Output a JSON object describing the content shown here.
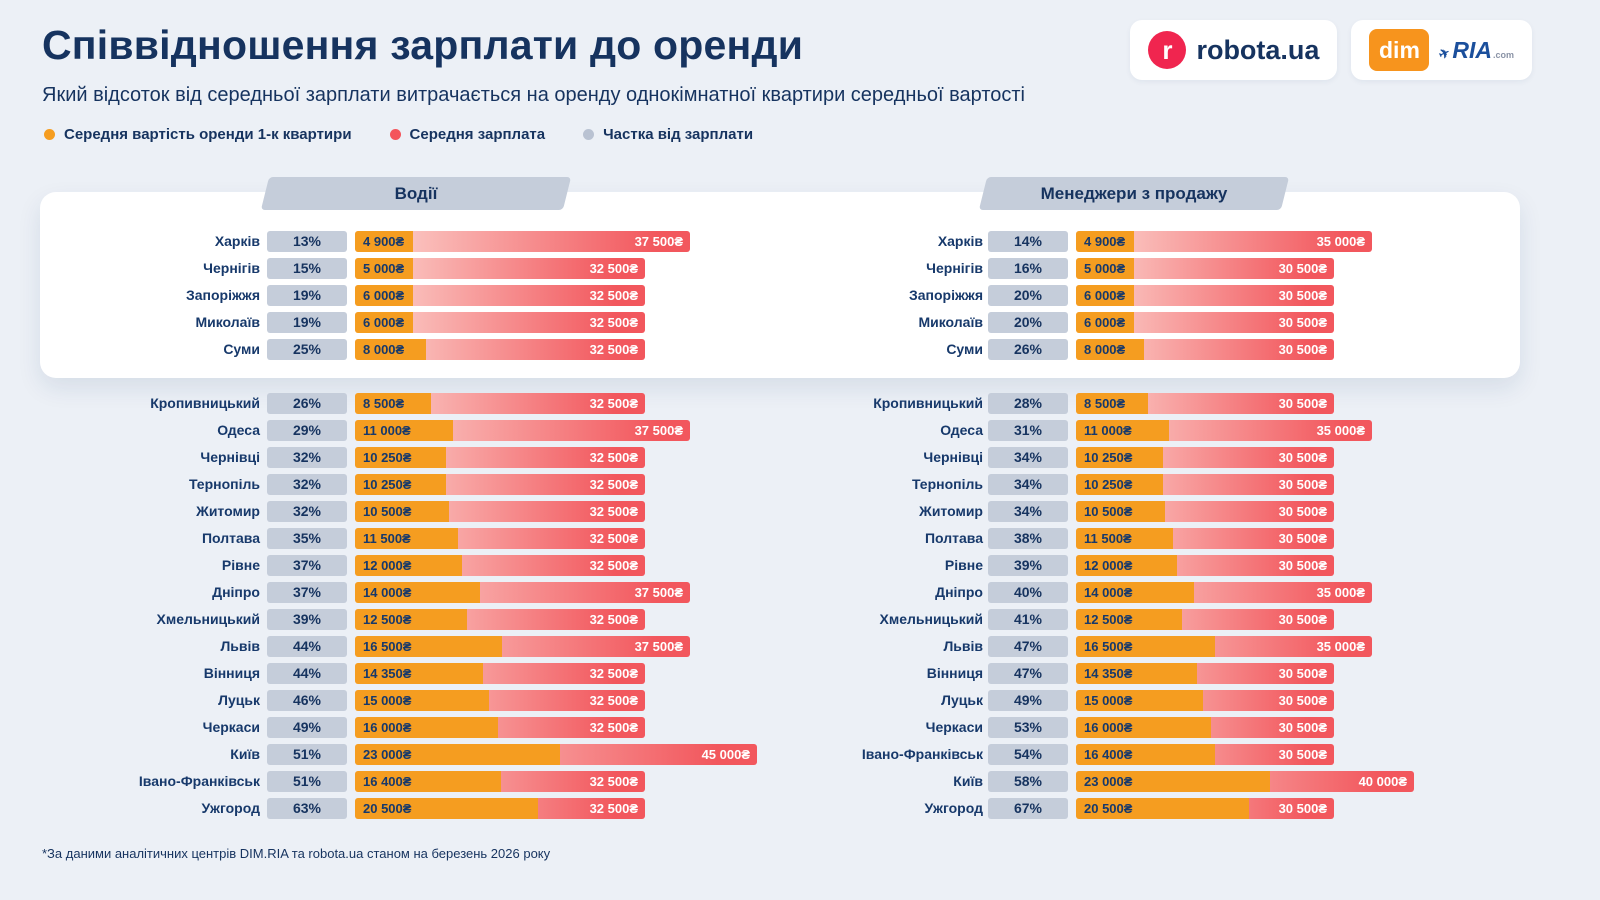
{
  "page": {
    "title": "Співвідношення зарплати до оренди",
    "subtitle": "Який відсоток від середньої зарплати витрачається на оренду однокімнатної квартири середньої вартості",
    "footnote": "*За даними аналітичних центрів DIM.RIA та robota.ua станом на березень 2026 року"
  },
  "colors": {
    "background": "#ecf0f6",
    "navy": "#16335f",
    "badge": "#c5cdda",
    "rent_orange": "#f59d20",
    "salary_red": "#f2575d",
    "salary_pink": "#fcd9d3"
  },
  "logos": {
    "robota_icon": "r",
    "robota": "robota.ua",
    "dim": "dim",
    "ria": "RIA",
    "ria_com": ".com"
  },
  "legend": [
    {
      "label": "Середня вартість оренди 1-к квартири",
      "color": "#f59d20"
    },
    {
      "label": "Середня зарплата",
      "color": "#f4545b"
    },
    {
      "label": "Частка від зарплати",
      "color": "#b9c2d2"
    }
  ],
  "chart_data": [
    {
      "type": "bar",
      "title": "Водії",
      "unit": "₴",
      "scale_max": 45000,
      "rows": [
        {
          "city": "Харків",
          "percent": "13%",
          "rent": 4900,
          "rent_label": "4 900₴",
          "salary": 37500,
          "salary_label": "37 500₴"
        },
        {
          "city": "Чернігів",
          "percent": "15%",
          "rent": 5000,
          "rent_label": "5 000₴",
          "salary": 32500,
          "salary_label": "32 500₴"
        },
        {
          "city": "Запоріжжя",
          "percent": "19%",
          "rent": 6000,
          "rent_label": "6 000₴",
          "salary": 32500,
          "salary_label": "32 500₴"
        },
        {
          "city": "Миколаїв",
          "percent": "19%",
          "rent": 6000,
          "rent_label": "6 000₴",
          "salary": 32500,
          "salary_label": "32 500₴"
        },
        {
          "city": "Суми",
          "percent": "25%",
          "rent": 8000,
          "rent_label": "8 000₴",
          "salary": 32500,
          "salary_label": "32 500₴"
        },
        {
          "city": "Кропивницький",
          "percent": "26%",
          "rent": 8500,
          "rent_label": "8 500₴",
          "salary": 32500,
          "salary_label": "32 500₴"
        },
        {
          "city": "Одеса",
          "percent": "29%",
          "rent": 11000,
          "rent_label": "11 000₴",
          "salary": 37500,
          "salary_label": "37 500₴"
        },
        {
          "city": "Чернівці",
          "percent": "32%",
          "rent": 10250,
          "rent_label": "10 250₴",
          "salary": 32500,
          "salary_label": "32 500₴"
        },
        {
          "city": "Тернопіль",
          "percent": "32%",
          "rent": 10250,
          "rent_label": "10 250₴",
          "salary": 32500,
          "salary_label": "32 500₴"
        },
        {
          "city": "Житомир",
          "percent": "32%",
          "rent": 10500,
          "rent_label": "10 500₴",
          "salary": 32500,
          "salary_label": "32 500₴"
        },
        {
          "city": "Полтава",
          "percent": "35%",
          "rent": 11500,
          "rent_label": "11 500₴",
          "salary": 32500,
          "salary_label": "32 500₴"
        },
        {
          "city": "Рівне",
          "percent": "37%",
          "rent": 12000,
          "rent_label": "12 000₴",
          "salary": 32500,
          "salary_label": "32 500₴"
        },
        {
          "city": "Дніпро",
          "percent": "37%",
          "rent": 14000,
          "rent_label": "14 000₴",
          "salary": 37500,
          "salary_label": "37 500₴"
        },
        {
          "city": "Хмельницький",
          "percent": "39%",
          "rent": 12500,
          "rent_label": "12 500₴",
          "salary": 32500,
          "salary_label": "32 500₴"
        },
        {
          "city": "Львів",
          "percent": "44%",
          "rent": 16500,
          "rent_label": "16 500₴",
          "salary": 37500,
          "salary_label": "37 500₴"
        },
        {
          "city": "Вінниця",
          "percent": "44%",
          "rent": 14350,
          "rent_label": "14 350₴",
          "salary": 32500,
          "salary_label": "32 500₴"
        },
        {
          "city": "Луцьк",
          "percent": "46%",
          "rent": 15000,
          "rent_label": "15 000₴",
          "salary": 32500,
          "salary_label": "32 500₴"
        },
        {
          "city": "Черкаси",
          "percent": "49%",
          "rent": 16000,
          "rent_label": "16 000₴",
          "salary": 32500,
          "salary_label": "32 500₴"
        },
        {
          "city": "Київ",
          "percent": "51%",
          "rent": 23000,
          "rent_label": "23 000₴",
          "salary": 45000,
          "salary_label": "45 000₴"
        },
        {
          "city": "Івано-Франківськ",
          "percent": "51%",
          "rent": 16400,
          "rent_label": "16 400₴",
          "salary": 32500,
          "salary_label": "32 500₴"
        },
        {
          "city": "Ужгород",
          "percent": "63%",
          "rent": 20500,
          "rent_label": "20 500₴",
          "salary": 32500,
          "salary_label": "32 500₴"
        }
      ]
    },
    {
      "type": "bar",
      "title": "Менеджери з продажу",
      "unit": "₴",
      "scale_max": 40000,
      "rows": [
        {
          "city": "Харків",
          "percent": "14%",
          "rent": 4900,
          "rent_label": "4 900₴",
          "salary": 35000,
          "salary_label": "35 000₴"
        },
        {
          "city": "Чернігів",
          "percent": "16%",
          "rent": 5000,
          "rent_label": "5 000₴",
          "salary": 30500,
          "salary_label": "30 500₴"
        },
        {
          "city": "Запоріжжя",
          "percent": "20%",
          "rent": 6000,
          "rent_label": "6 000₴",
          "salary": 30500,
          "salary_label": "30 500₴"
        },
        {
          "city": "Миколаїв",
          "percent": "20%",
          "rent": 6000,
          "rent_label": "6 000₴",
          "salary": 30500,
          "salary_label": "30 500₴"
        },
        {
          "city": "Суми",
          "percent": "26%",
          "rent": 8000,
          "rent_label": "8 000₴",
          "salary": 30500,
          "salary_label": "30 500₴"
        },
        {
          "city": "Кропивницький",
          "percent": "28%",
          "rent": 8500,
          "rent_label": "8 500₴",
          "salary": 30500,
          "salary_label": "30 500₴"
        },
        {
          "city": "Одеса",
          "percent": "31%",
          "rent": 11000,
          "rent_label": "11 000₴",
          "salary": 35000,
          "salary_label": "35 000₴"
        },
        {
          "city": "Чернівці",
          "percent": "34%",
          "rent": 10250,
          "rent_label": "10 250₴",
          "salary": 30500,
          "salary_label": "30 500₴"
        },
        {
          "city": "Тернопіль",
          "percent": "34%",
          "rent": 10250,
          "rent_label": "10 250₴",
          "salary": 30500,
          "salary_label": "30 500₴"
        },
        {
          "city": "Житомир",
          "percent": "34%",
          "rent": 10500,
          "rent_label": "10 500₴",
          "salary": 30500,
          "salary_label": "30 500₴"
        },
        {
          "city": "Полтава",
          "percent": "38%",
          "rent": 11500,
          "rent_label": "11 500₴",
          "salary": 30500,
          "salary_label": "30 500₴"
        },
        {
          "city": "Рівне",
          "percent": "39%",
          "rent": 12000,
          "rent_label": "12 000₴",
          "salary": 30500,
          "salary_label": "30 500₴"
        },
        {
          "city": "Дніпро",
          "percent": "40%",
          "rent": 14000,
          "rent_label": "14 000₴",
          "salary": 35000,
          "salary_label": "35 000₴"
        },
        {
          "city": "Хмельницький",
          "percent": "41%",
          "rent": 12500,
          "rent_label": "12 500₴",
          "salary": 30500,
          "salary_label": "30 500₴"
        },
        {
          "city": "Львів",
          "percent": "47%",
          "rent": 16500,
          "rent_label": "16 500₴",
          "salary": 35000,
          "salary_label": "35 000₴"
        },
        {
          "city": "Вінниця",
          "percent": "47%",
          "rent": 14350,
          "rent_label": "14 350₴",
          "salary": 30500,
          "salary_label": "30 500₴"
        },
        {
          "city": "Луцьк",
          "percent": "49%",
          "rent": 15000,
          "rent_label": "15 000₴",
          "salary": 30500,
          "salary_label": "30 500₴"
        },
        {
          "city": "Черкаси",
          "percent": "53%",
          "rent": 16000,
          "rent_label": "16 000₴",
          "salary": 30500,
          "salary_label": "30 500₴"
        },
        {
          "city": "Івано-Франківськ",
          "percent": "54%",
          "rent": 16400,
          "rent_label": "16 400₴",
          "salary": 30500,
          "salary_label": "30 500₴"
        },
        {
          "city": "Київ",
          "percent": "58%",
          "rent": 23000,
          "rent_label": "23 000₴",
          "salary": 40000,
          "salary_label": "40 000₴"
        },
        {
          "city": "Ужгород",
          "percent": "67%",
          "rent": 20500,
          "rent_label": "20 500₴",
          "salary": 30500,
          "salary_label": "30 500₴"
        }
      ]
    }
  ]
}
